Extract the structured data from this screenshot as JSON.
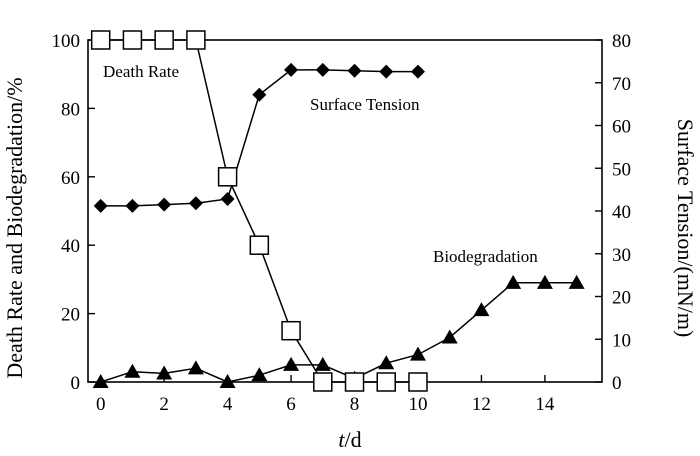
{
  "chart_data": {
    "type": "line",
    "xlabel_italic": "t",
    "xlabel_rest": "/d",
    "ylabel_left": "Death Rate and Biodegradation/%",
    "ylabel_right": "Surface Tension/(mN/m)",
    "x_ticks": [
      "0",
      "2",
      "4",
      "6",
      "8",
      "10",
      "12",
      "14"
    ],
    "y_left_ticks": [
      "0",
      "20",
      "40",
      "60",
      "80",
      "100"
    ],
    "y_right_ticks": [
      "0",
      "10",
      "20",
      "30",
      "40",
      "50",
      "60",
      "70",
      "80"
    ],
    "xlim": [
      -0.4,
      15.8
    ],
    "ylim_left": [
      0,
      100
    ],
    "ylim_right": [
      0,
      80
    ],
    "series": [
      {
        "name": "Death Rate",
        "axis": "left",
        "marker": "open-square",
        "x": [
          0,
          1,
          2,
          3,
          4,
          5,
          6,
          7,
          8,
          9,
          10
        ],
        "values": [
          100,
          100,
          100,
          100,
          60,
          40,
          15,
          0,
          0,
          0,
          0
        ]
      },
      {
        "name": "Surface Tension",
        "axis": "right",
        "marker": "filled-diamond",
        "x": [
          0,
          1,
          2,
          3,
          4,
          5,
          6,
          7,
          8,
          9,
          10
        ],
        "values": [
          41.2,
          41.2,
          41.5,
          41.8,
          42.8,
          67.2,
          73,
          73,
          72.8,
          72.6,
          72.6
        ]
      },
      {
        "name": "Biodegradation",
        "axis": "left",
        "marker": "filled-triangle",
        "x": [
          0,
          1,
          2,
          3,
          4,
          5,
          6,
          7,
          8,
          9,
          10,
          11,
          12,
          13,
          14,
          15
        ],
        "values": [
          0,
          3,
          2.5,
          4,
          0,
          2,
          5,
          5,
          1,
          5.5,
          8,
          13,
          21,
          29,
          29,
          29
        ]
      }
    ],
    "annotations": [
      {
        "text": "Death Rate",
        "series": "Death Rate"
      },
      {
        "text": "Surface Tension",
        "series": "Surface Tension"
      },
      {
        "text": "Biodegradation",
        "series": "Biodegradation"
      }
    ]
  }
}
